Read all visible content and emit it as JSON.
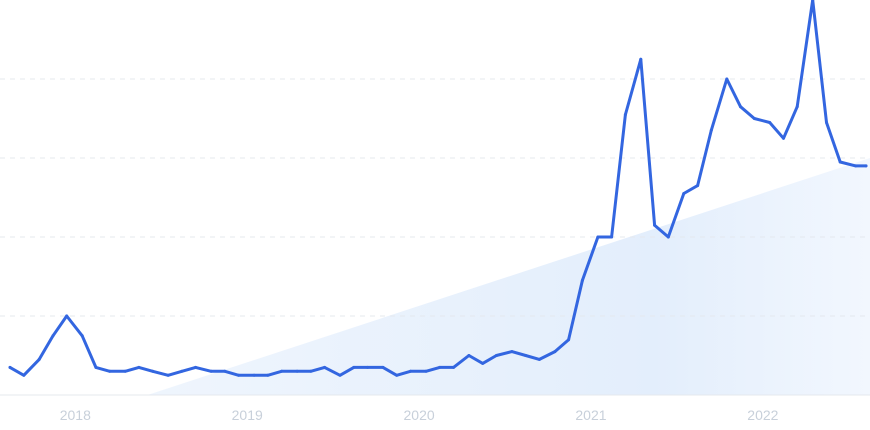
{
  "chart_data": {
    "type": "line",
    "title": "",
    "xlabel": "",
    "ylabel": "",
    "x_ticks": [
      "2018",
      "2019",
      "2020",
      "2021",
      "2022"
    ],
    "x_tick_values": [
      2018.0,
      2019.0,
      2020.0,
      2021.0,
      2022.0
    ],
    "xlim": [
      2017.62,
      2022.6
    ],
    "ylim": [
      0,
      100
    ],
    "grid": "horizontal-dashed",
    "y_gridlines": [
      20,
      40,
      60,
      80
    ],
    "line_color": "#3366e0",
    "trend_fill_color": "#e3eefc",
    "series": [
      {
        "x": [
          2017.62,
          2017.7,
          2017.79,
          2017.87,
          2017.95,
          2018.04,
          2018.12,
          2018.2,
          2018.29,
          2018.37,
          2018.45,
          2018.54,
          2018.62,
          2018.7,
          2018.79,
          2018.87,
          2018.95,
          2019.04,
          2019.12,
          2019.2,
          2019.29,
          2019.37,
          2019.45,
          2019.54,
          2019.62,
          2019.7,
          2019.79,
          2019.87,
          2019.95,
          2020.04,
          2020.12,
          2020.2,
          2020.29,
          2020.37,
          2020.45,
          2020.54,
          2020.62,
          2020.7,
          2020.79,
          2020.87,
          2020.95,
          2021.04,
          2021.12,
          2021.2,
          2021.29,
          2021.37,
          2021.45,
          2021.54,
          2021.62,
          2021.7,
          2021.79,
          2021.87,
          2021.95,
          2022.04,
          2022.12,
          2022.2,
          2022.29,
          2022.37,
          2022.45,
          2022.54,
          2022.6
        ],
        "values": [
          7,
          5,
          9,
          15,
          20,
          15,
          7,
          6,
          6,
          7,
          6,
          5,
          6,
          7,
          6,
          6,
          5,
          5,
          5,
          6,
          6,
          6,
          7,
          5,
          7,
          7,
          7,
          5,
          6,
          6,
          7,
          7,
          10,
          8,
          10,
          11,
          10,
          9,
          11,
          14,
          29,
          40,
          40,
          71,
          85,
          43,
          40,
          51,
          53,
          67,
          80,
          73,
          70,
          69,
          65,
          73,
          100,
          69,
          59,
          58,
          58
        ]
      }
    ]
  }
}
